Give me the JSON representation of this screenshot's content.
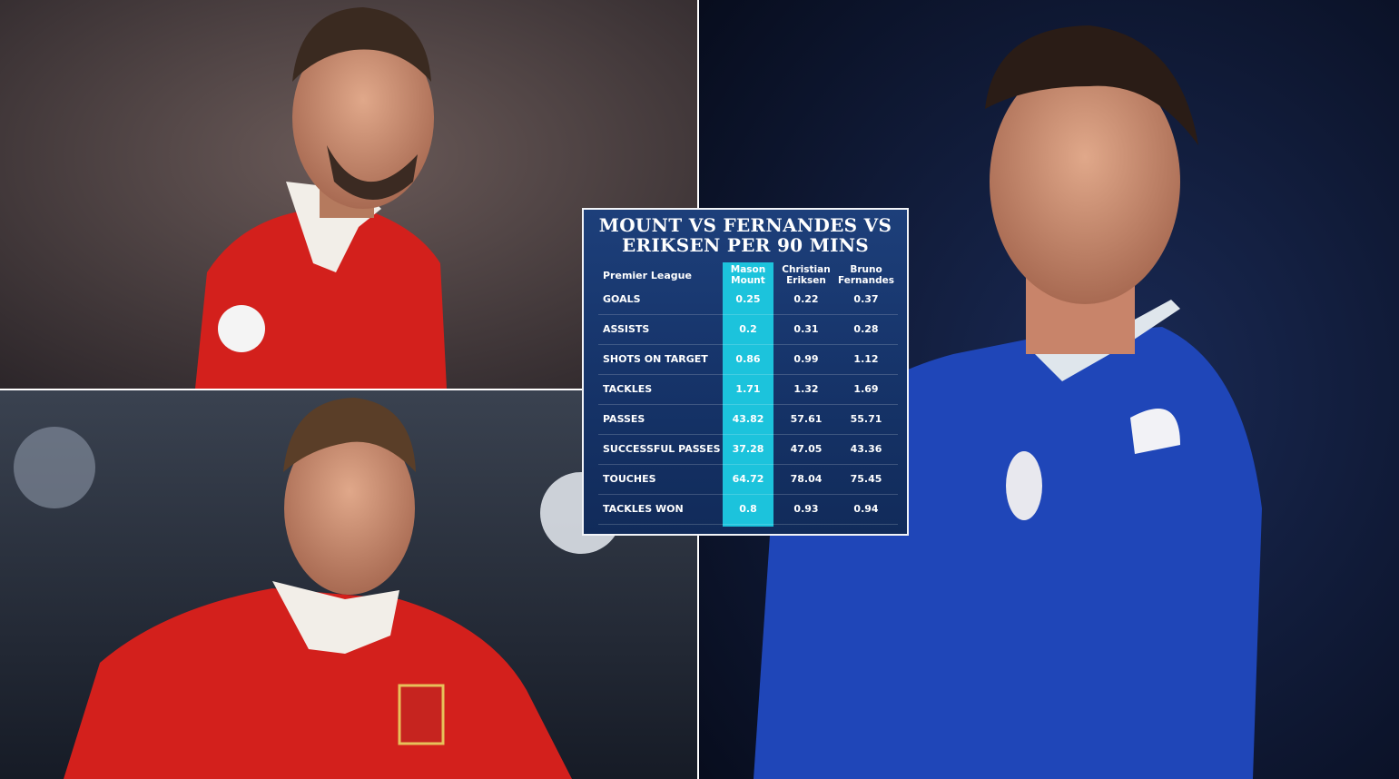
{
  "stats_table": {
    "title_lines": [
      "MOUNT VS FERNANDES VS",
      "ERIKSEN PER 90 MINS"
    ],
    "competition": "Premier League",
    "players": [
      "Mason Mount",
      "Christian Eriksen",
      "Bruno Fernandes"
    ],
    "rows": [
      {
        "label": "GOALS",
        "values": [
          0.25,
          0.22,
          0.37
        ]
      },
      {
        "label": "ASSISTS",
        "values": [
          0.2,
          0.31,
          0.28
        ]
      },
      {
        "label": "SHOTS ON TARGET",
        "values": [
          0.86,
          0.99,
          1.12
        ]
      },
      {
        "label": "TACKLES",
        "values": [
          1.71,
          1.32,
          1.69
        ]
      },
      {
        "label": "PASSES",
        "values": [
          43.82,
          57.61,
          55.71
        ]
      },
      {
        "label": "SUCCESSFUL PASSES",
        "values": [
          37.28,
          47.05,
          43.36
        ]
      },
      {
        "label": "TOUCHES",
        "values": [
          64.72,
          78.04,
          75.45
        ]
      },
      {
        "label": "TACKLES WON",
        "values": [
          0.8,
          0.93,
          0.94
        ]
      }
    ]
  }
}
